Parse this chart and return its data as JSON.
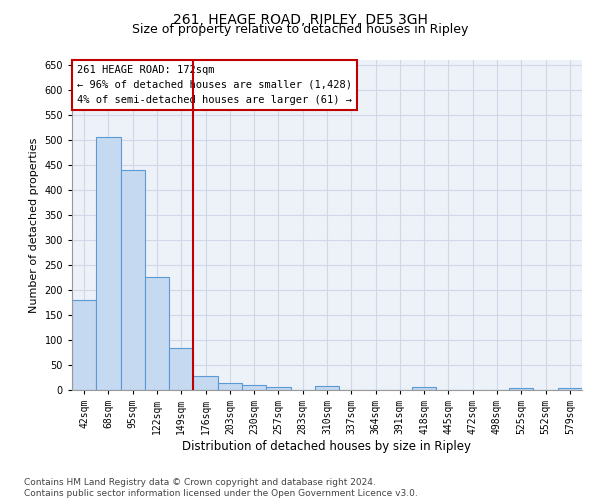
{
  "title": "261, HEAGE ROAD, RIPLEY, DE5 3GH",
  "subtitle": "Size of property relative to detached houses in Ripley",
  "xlabel": "Distribution of detached houses by size in Ripley",
  "ylabel": "Number of detached properties",
  "categories": [
    "42sqm",
    "68sqm",
    "95sqm",
    "122sqm",
    "149sqm",
    "176sqm",
    "203sqm",
    "230sqm",
    "257sqm",
    "283sqm",
    "310sqm",
    "337sqm",
    "364sqm",
    "391sqm",
    "418sqm",
    "445sqm",
    "472sqm",
    "498sqm",
    "525sqm",
    "552sqm",
    "579sqm"
  ],
  "values": [
    180,
    507,
    440,
    226,
    85,
    28,
    15,
    10,
    7,
    0,
    8,
    0,
    0,
    0,
    7,
    0,
    0,
    0,
    5,
    0,
    5
  ],
  "bar_color": "#c5d9f0",
  "bar_edge_color": "#5b9bd5",
  "ylim": [
    0,
    660
  ],
  "yticks": [
    0,
    50,
    100,
    150,
    200,
    250,
    300,
    350,
    400,
    450,
    500,
    550,
    600,
    650
  ],
  "vline_x_index": 5,
  "vline_color": "#c00000",
  "annotation_box_text": "261 HEAGE ROAD: 172sqm\n← 96% of detached houses are smaller (1,428)\n4% of semi-detached houses are larger (61) →",
  "footnote": "Contains HM Land Registry data © Crown copyright and database right 2024.\nContains public sector information licensed under the Open Government Licence v3.0.",
  "grid_color": "#d0d8e8",
  "background_color": "#edf2f9",
  "title_fontsize": 10,
  "subtitle_fontsize": 9,
  "tick_fontsize": 7,
  "ylabel_fontsize": 8,
  "xlabel_fontsize": 8.5,
  "annotation_fontsize": 7.5,
  "footnote_fontsize": 6.5
}
